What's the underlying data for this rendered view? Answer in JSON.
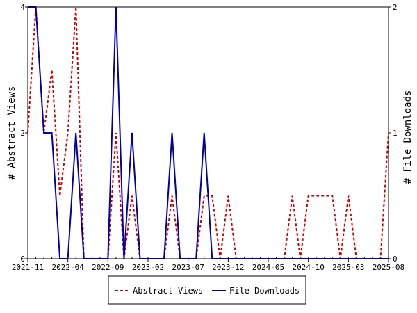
{
  "chart_data": {
    "type": "line",
    "x_tick_labels": [
      "2021-11",
      "2022-04",
      "2022-09",
      "2023-02",
      "2023-07",
      "2023-12",
      "2024-05",
      "2024-10",
      "2025-03",
      "2025-08"
    ],
    "x_unit": "month",
    "x_start": "2021-11",
    "x_end": "2025-08",
    "y_left": {
      "label": "# Abstract Views",
      "range": [
        0,
        4
      ],
      "ticks": [
        "0",
        "2",
        "4"
      ]
    },
    "y_right": {
      "label": "# File Downloads",
      "range": [
        0,
        2
      ],
      "ticks": [
        "0",
        "1",
        "2"
      ]
    },
    "grid": false,
    "legend_position": "bottom",
    "series": [
      {
        "name": "Abstract Views",
        "axis": "left",
        "color": "#cc0000",
        "style": "dashed",
        "values": [
          2,
          4,
          2,
          3,
          1,
          2,
          4,
          0,
          0,
          0,
          0,
          2,
          0,
          1,
          0,
          0,
          0,
          0,
          1,
          0,
          0,
          0,
          1,
          1,
          0,
          1,
          0,
          0,
          0,
          0,
          0,
          0,
          0,
          1,
          0,
          1,
          1,
          1,
          1,
          0,
          1,
          0,
          0,
          0,
          0,
          2
        ]
      },
      {
        "name": "File Downloads",
        "axis": "right",
        "color": "#0000aa",
        "style": "solid",
        "values": [
          2,
          2,
          1,
          1,
          0,
          0,
          1,
          0,
          0,
          0,
          0,
          2,
          0,
          1,
          0,
          0,
          0,
          0,
          1,
          0,
          0,
          0,
          1,
          0,
          0,
          0,
          0,
          0,
          0,
          0,
          0,
          0,
          0,
          0,
          0,
          0,
          0,
          0,
          0,
          0,
          0,
          0,
          0,
          0,
          0,
          0
        ]
      }
    ]
  }
}
